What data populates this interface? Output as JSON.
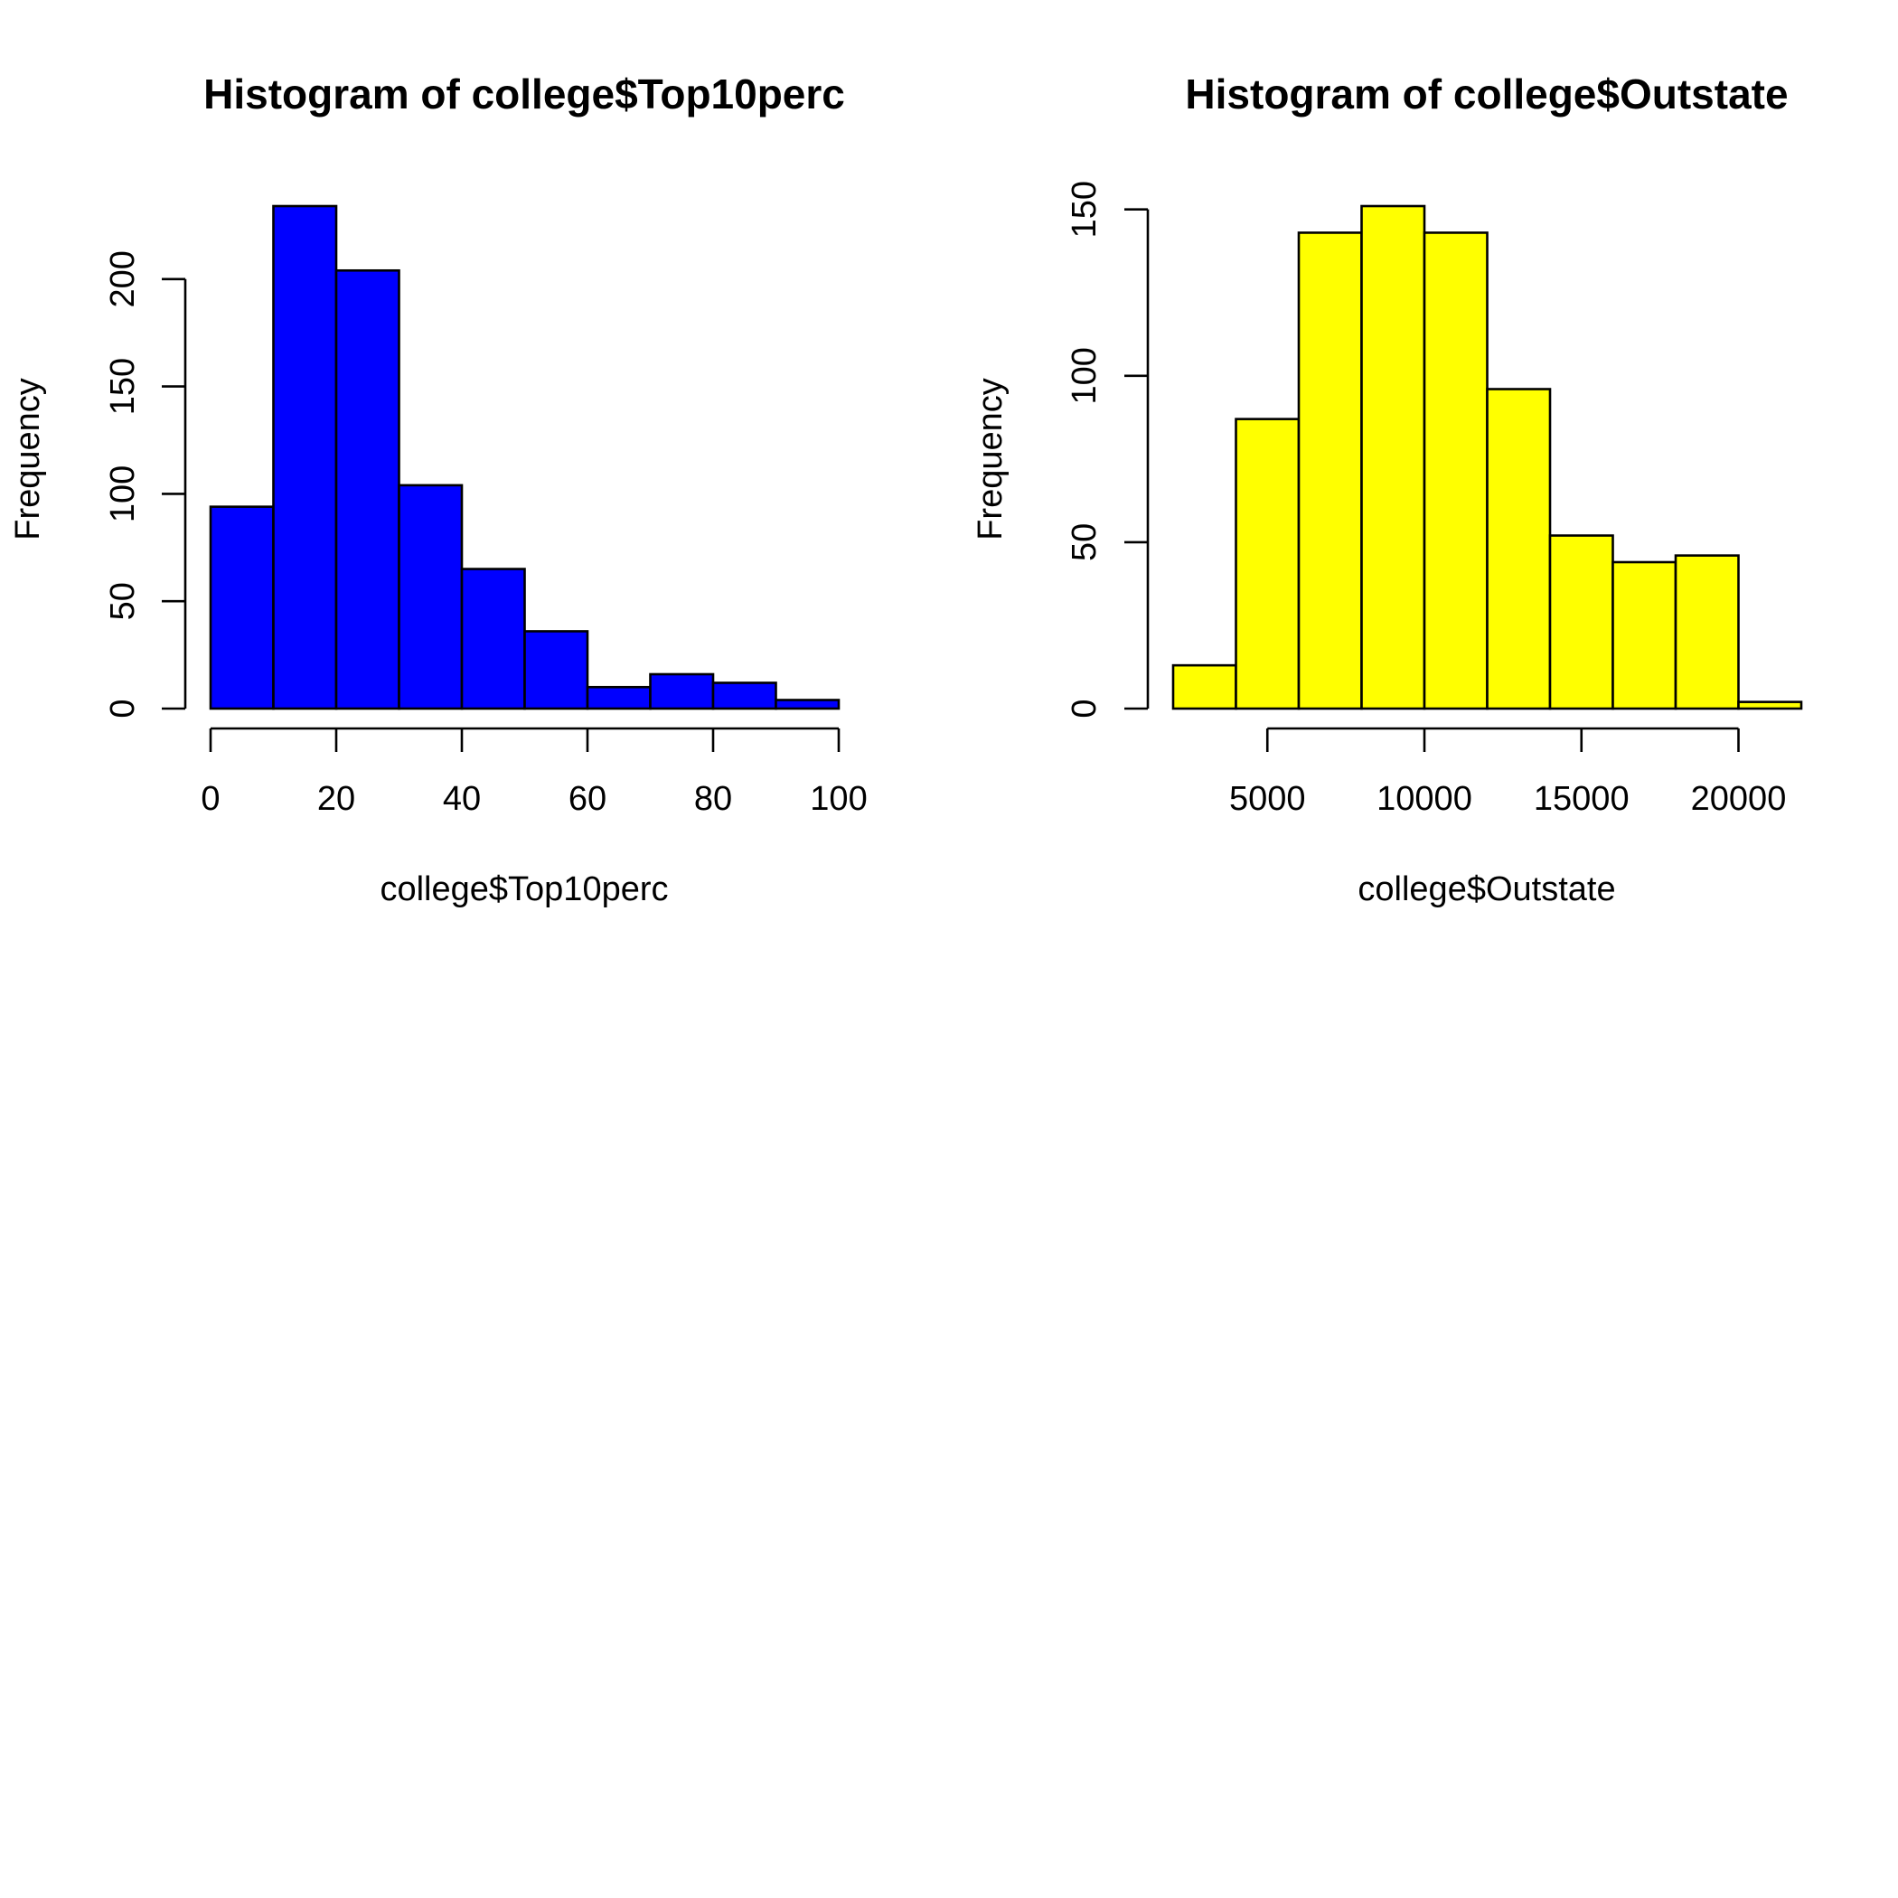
{
  "chart_data": [
    {
      "type": "bar",
      "title": "Histogram of college$Top10perc",
      "xlabel": "college$Top10perc",
      "ylabel": "Frequency",
      "color": "#0000ff",
      "bins": [
        [
          0,
          10
        ],
        [
          10,
          20
        ],
        [
          20,
          30
        ],
        [
          30,
          40
        ],
        [
          40,
          50
        ],
        [
          50,
          60
        ],
        [
          60,
          70
        ],
        [
          70,
          80
        ],
        [
          80,
          90
        ],
        [
          90,
          100
        ]
      ],
      "values": [
        94,
        234,
        204,
        104,
        65,
        36,
        10,
        16,
        12,
        4
      ],
      "xticks": [
        0,
        20,
        40,
        60,
        80,
        100
      ],
      "xtick_labels": [
        "0",
        "20",
        "40",
        "60",
        "80",
        "100"
      ],
      "yticks": [
        0,
        50,
        100,
        150,
        200
      ],
      "ytick_labels": [
        "0",
        "50",
        "100",
        "150",
        "200"
      ],
      "xlim": [
        0,
        100
      ],
      "ylim": [
        0,
        234
      ],
      "grid": false
    },
    {
      "type": "bar",
      "title": "Histogram of college$Outstate",
      "xlabel": "college$Outstate",
      "ylabel": "Frequency",
      "color": "#ffff00",
      "bins": [
        [
          2000,
          4000
        ],
        [
          4000,
          6000
        ],
        [
          6000,
          8000
        ],
        [
          8000,
          10000
        ],
        [
          10000,
          12000
        ],
        [
          12000,
          14000
        ],
        [
          14000,
          16000
        ],
        [
          16000,
          18000
        ],
        [
          18000,
          20000
        ],
        [
          20000,
          22000
        ]
      ],
      "values": [
        13,
        87,
        143,
        151,
        143,
        96,
        52,
        44,
        46,
        2
      ],
      "xticks": [
        5000,
        10000,
        15000,
        20000
      ],
      "xtick_labels": [
        "5000",
        "10000",
        "15000",
        "20000"
      ],
      "yticks": [
        0,
        50,
        100,
        150
      ],
      "ytick_labels": [
        "0",
        "50",
        "100",
        "150"
      ],
      "xlim": [
        2000,
        22000
      ],
      "ylim": [
        0,
        151
      ],
      "grid": false
    }
  ]
}
